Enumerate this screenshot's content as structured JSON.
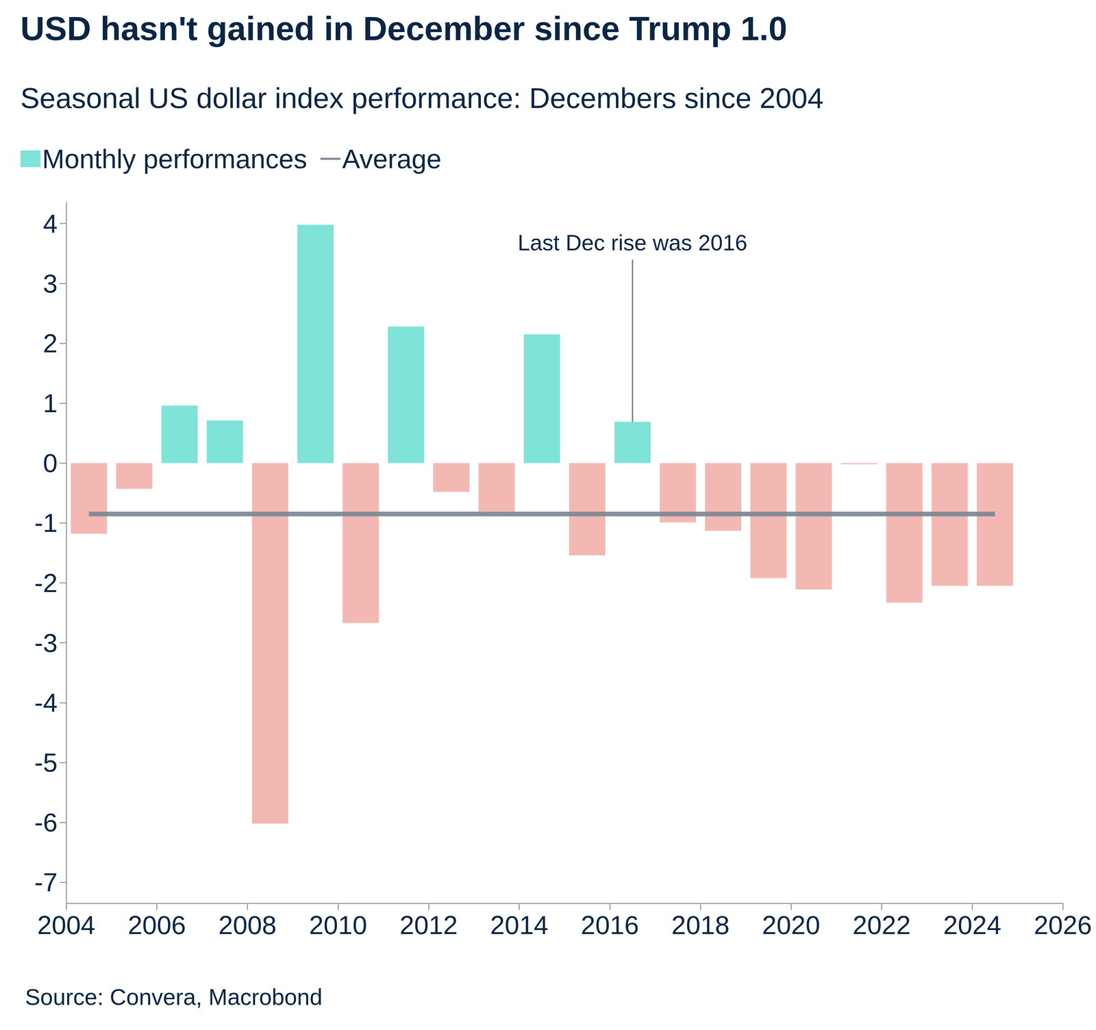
{
  "chart_data": {
    "type": "bar",
    "title": "USD hasn't gained in December since Trump 1.0",
    "subtitle": "Seasonal US dollar index performance: Decembers since 2004",
    "source": "Source: Convera, Macrobond",
    "x": [
      2004,
      2005,
      2006,
      2007,
      2008,
      2009,
      2010,
      2011,
      2012,
      2013,
      2014,
      2015,
      2016,
      2017,
      2018,
      2019,
      2020,
      2021,
      2022,
      2023,
      2024
    ],
    "series": [
      {
        "name": "Monthly performances",
        "type": "bar",
        "values": [
          -1.18,
          -0.43,
          0.96,
          0.71,
          -6.02,
          3.98,
          -2.67,
          2.28,
          -0.48,
          -0.81,
          2.15,
          -1.54,
          0.69,
          -0.99,
          -1.13,
          -1.92,
          -2.11,
          -0.02,
          -2.33,
          -2.05,
          -2.05
        ],
        "colors": [
          "#f4b8b3",
          "#f4b8b3",
          "#80e3d8",
          "#80e3d8",
          "#f4b8b3",
          "#80e3d8",
          "#f4b8b3",
          "#80e3d8",
          "#f4b8b3",
          "#f4b8b3",
          "#80e3d8",
          "#f4b8b3",
          "#80e3d8",
          "#f4b8b3",
          "#f4b8b3",
          "#f4b8b3",
          "#f4b8b3",
          "#f4b8b3",
          "#f4b8b3",
          "#f4b8b3",
          "#f4b8b3"
        ]
      },
      {
        "name": "Average",
        "type": "line",
        "value": -0.85,
        "color": "#7b8793"
      }
    ],
    "annotations": [
      {
        "text": "Last Dec rise was 2016",
        "x": 2016
      }
    ],
    "xlim": [
      2004,
      2026
    ],
    "xticks": [
      2004,
      2006,
      2008,
      2010,
      2012,
      2014,
      2016,
      2018,
      2020,
      2022,
      2024,
      2026
    ],
    "ylim": [
      -7.35,
      4.35
    ],
    "yticks": [
      -7,
      -6,
      -5,
      -4,
      -3,
      -2,
      -1,
      0,
      1,
      2,
      3,
      4
    ],
    "grid": false,
    "legend": "top-left"
  }
}
